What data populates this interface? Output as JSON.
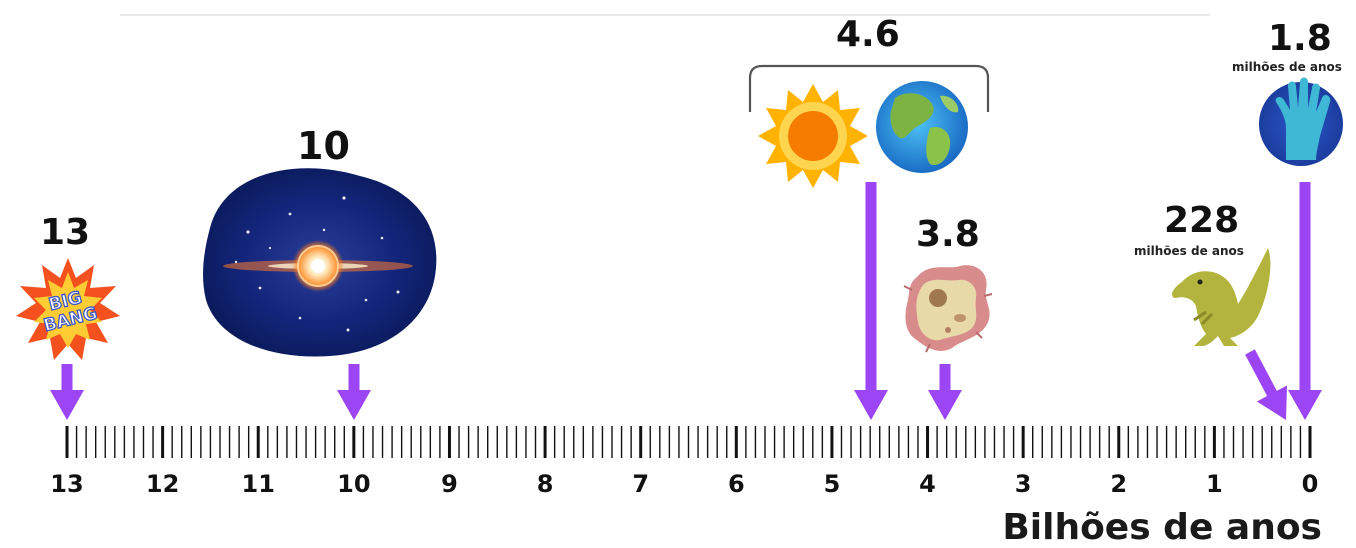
{
  "events": [
    {
      "id": "big-bang",
      "value": "13",
      "icon": "big-bang-burst-icon",
      "badge": [
        "BIG",
        "BANG"
      ]
    },
    {
      "id": "galaxy",
      "value": "10",
      "icon": "galaxy-icon"
    },
    {
      "id": "sun-earth",
      "value": "4.6",
      "icon": "sun-and-earth-icon"
    },
    {
      "id": "microbe",
      "value": "3.8",
      "icon": "microbe-icon"
    },
    {
      "id": "dinosaur",
      "value": "228",
      "sublabel": "milhões de anos",
      "icon": "dinosaur-icon"
    },
    {
      "id": "human",
      "value": "1.8",
      "sublabel": "milhões de anos",
      "icon": "hand-icon"
    }
  ],
  "axis": {
    "ticks": [
      "13",
      "12",
      "11",
      "10",
      "9",
      "8",
      "7",
      "6",
      "5",
      "4",
      "3",
      "2",
      "1",
      "0"
    ],
    "title": "Bilhões de anos"
  },
  "colors": {
    "arrow": "#9b45f5",
    "text": "#111111"
  }
}
